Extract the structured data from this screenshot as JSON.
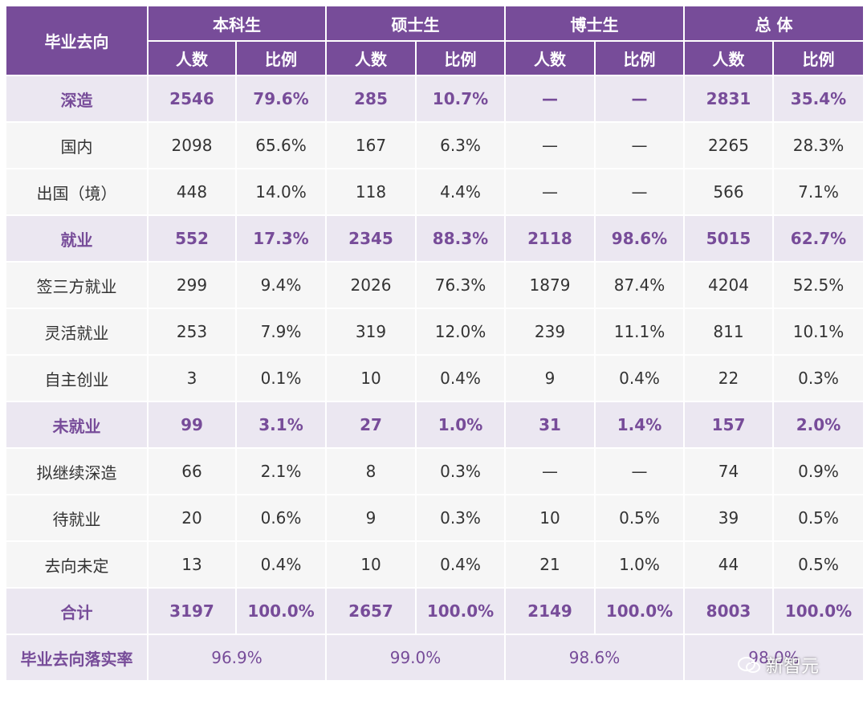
{
  "table": {
    "corner": "毕业去向",
    "groups": [
      "本科生",
      "硕士生",
      "博士生",
      "总 体"
    ],
    "subheaders": [
      "人数",
      "比例",
      "人数",
      "比例",
      "人数",
      "比例",
      "人数",
      "比例"
    ],
    "rows": [
      {
        "label": "深造",
        "emphasis": true,
        "cells": [
          "2546",
          "79.6%",
          "285",
          "10.7%",
          "—",
          "—",
          "2831",
          "35.4%"
        ]
      },
      {
        "label": "国内",
        "emphasis": false,
        "cells": [
          "2098",
          "65.6%",
          "167",
          "6.3%",
          "—",
          "—",
          "2265",
          "28.3%"
        ]
      },
      {
        "label": "出国（境）",
        "emphasis": false,
        "cells": [
          "448",
          "14.0%",
          "118",
          "4.4%",
          "—",
          "—",
          "566",
          "7.1%"
        ]
      },
      {
        "label": "就业",
        "emphasis": true,
        "cells": [
          "552",
          "17.3%",
          "2345",
          "88.3%",
          "2118",
          "98.6%",
          "5015",
          "62.7%"
        ]
      },
      {
        "label": "签三方就业",
        "emphasis": false,
        "cells": [
          "299",
          "9.4%",
          "2026",
          "76.3%",
          "1879",
          "87.4%",
          "4204",
          "52.5%"
        ]
      },
      {
        "label": "灵活就业",
        "emphasis": false,
        "cells": [
          "253",
          "7.9%",
          "319",
          "12.0%",
          "239",
          "11.1%",
          "811",
          "10.1%"
        ]
      },
      {
        "label": "自主创业",
        "emphasis": false,
        "cells": [
          "3",
          "0.1%",
          "10",
          "0.4%",
          "9",
          "0.4%",
          "22",
          "0.3%"
        ]
      },
      {
        "label": "未就业",
        "emphasis": true,
        "cells": [
          "99",
          "3.1%",
          "27",
          "1.0%",
          "31",
          "1.4%",
          "157",
          "2.0%"
        ]
      },
      {
        "label": "拟继续深造",
        "emphasis": false,
        "cells": [
          "66",
          "2.1%",
          "8",
          "0.3%",
          "—",
          "—",
          "74",
          "0.9%"
        ]
      },
      {
        "label": "待就业",
        "emphasis": false,
        "cells": [
          "20",
          "0.6%",
          "9",
          "0.3%",
          "10",
          "0.5%",
          "39",
          "0.5%"
        ]
      },
      {
        "label": "去向未定",
        "emphasis": false,
        "cells": [
          "13",
          "0.4%",
          "10",
          "0.4%",
          "21",
          "1.0%",
          "44",
          "0.5%"
        ]
      },
      {
        "label": "合计",
        "emphasis": true,
        "cells": [
          "3197",
          "100.0%",
          "2657",
          "100.0%",
          "2149",
          "100.0%",
          "8003",
          "100.0%"
        ]
      }
    ],
    "footer": {
      "label": "毕业去向落实率",
      "values": [
        "96.9%",
        "99.0%",
        "98.6%",
        "98.0%"
      ]
    }
  },
  "watermark": "新智元"
}
